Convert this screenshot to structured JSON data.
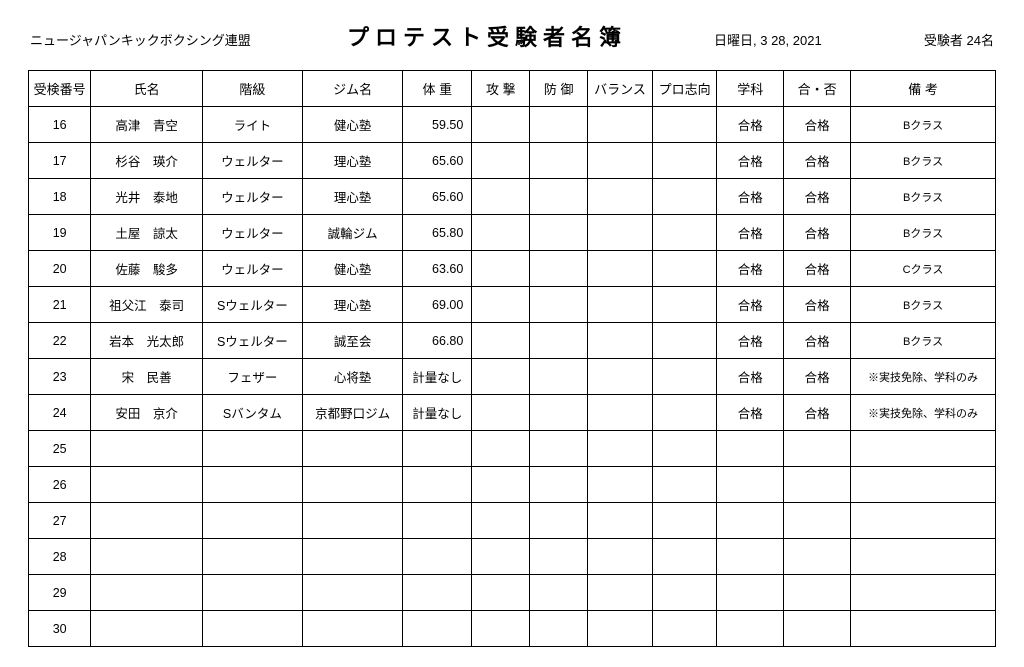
{
  "header": {
    "organization": "ニュージャパンキックボクシング連盟",
    "title": "プロテスト受験者名簿",
    "date": "日曜日, 3 28, 2021",
    "count_label": "受験者 24名"
  },
  "table": {
    "columns": [
      "受検番号",
      "氏名",
      "階級",
      "ジム名",
      "体 重",
      "攻 撃",
      "防 御",
      "バランス",
      "プロ志向",
      "学科",
      "合・否",
      "備 考"
    ],
    "rows": [
      {
        "num": "16",
        "name": "高津　青空",
        "class": "ライト",
        "gym": "健心塾",
        "weight": "59.50",
        "attack": "",
        "defense": "",
        "balance": "",
        "pro": "",
        "subject": "合格",
        "pass": "合格",
        "note": "Bクラス"
      },
      {
        "num": "17",
        "name": "杉谷　瑛介",
        "class": "ウェルター",
        "gym": "理心塾",
        "weight": "65.60",
        "attack": "",
        "defense": "",
        "balance": "",
        "pro": "",
        "subject": "合格",
        "pass": "合格",
        "note": "Bクラス"
      },
      {
        "num": "18",
        "name": "光井　泰地",
        "class": "ウェルター",
        "gym": "理心塾",
        "weight": "65.60",
        "attack": "",
        "defense": "",
        "balance": "",
        "pro": "",
        "subject": "合格",
        "pass": "合格",
        "note": "Bクラス"
      },
      {
        "num": "19",
        "name": "土屋　諒太",
        "class": "ウェルター",
        "gym": "誠輪ジム",
        "weight": "65.80",
        "attack": "",
        "defense": "",
        "balance": "",
        "pro": "",
        "subject": "合格",
        "pass": "合格",
        "note": "Bクラス"
      },
      {
        "num": "20",
        "name": "佐藤　駿多",
        "class": "ウェルター",
        "gym": "健心塾",
        "weight": "63.60",
        "attack": "",
        "defense": "",
        "balance": "",
        "pro": "",
        "subject": "合格",
        "pass": "合格",
        "note": "Cクラス"
      },
      {
        "num": "21",
        "name": "祖父江　泰司",
        "class": "Sウェルター",
        "gym": "理心塾",
        "weight": "69.00",
        "attack": "",
        "defense": "",
        "balance": "",
        "pro": "",
        "subject": "合格",
        "pass": "合格",
        "note": "Bクラス"
      },
      {
        "num": "22",
        "name": "岩本　光太郎",
        "class": "Sウェルター",
        "gym": "誠至会",
        "weight": "66.80",
        "attack": "",
        "defense": "",
        "balance": "",
        "pro": "",
        "subject": "合格",
        "pass": "合格",
        "note": "Bクラス"
      },
      {
        "num": "23",
        "name": "宋　民善",
        "class": "フェザー",
        "gym": "心将塾",
        "weight": "計量なし",
        "attack": "",
        "defense": "",
        "balance": "",
        "pro": "",
        "subject": "合格",
        "pass": "合格",
        "note": "※実技免除、学科のみ"
      },
      {
        "num": "24",
        "name": "安田　京介",
        "class": "Sバンタム",
        "gym": "京都野口ジム",
        "weight": "計量なし",
        "attack": "",
        "defense": "",
        "balance": "",
        "pro": "",
        "subject": "合格",
        "pass": "合格",
        "note": "※実技免除、学科のみ"
      },
      {
        "num": "25",
        "name": "",
        "class": "",
        "gym": "",
        "weight": "",
        "attack": "",
        "defense": "",
        "balance": "",
        "pro": "",
        "subject": "",
        "pass": "",
        "note": ""
      },
      {
        "num": "26",
        "name": "",
        "class": "",
        "gym": "",
        "weight": "",
        "attack": "",
        "defense": "",
        "balance": "",
        "pro": "",
        "subject": "",
        "pass": "",
        "note": ""
      },
      {
        "num": "27",
        "name": "",
        "class": "",
        "gym": "",
        "weight": "",
        "attack": "",
        "defense": "",
        "balance": "",
        "pro": "",
        "subject": "",
        "pass": "",
        "note": ""
      },
      {
        "num": "28",
        "name": "",
        "class": "",
        "gym": "",
        "weight": "",
        "attack": "",
        "defense": "",
        "balance": "",
        "pro": "",
        "subject": "",
        "pass": "",
        "note": ""
      },
      {
        "num": "29",
        "name": "",
        "class": "",
        "gym": "",
        "weight": "",
        "attack": "",
        "defense": "",
        "balance": "",
        "pro": "",
        "subject": "",
        "pass": "",
        "note": ""
      },
      {
        "num": "30",
        "name": "",
        "class": "",
        "gym": "",
        "weight": "",
        "attack": "",
        "defense": "",
        "balance": "",
        "pro": "",
        "subject": "",
        "pass": "",
        "note": ""
      }
    ]
  }
}
